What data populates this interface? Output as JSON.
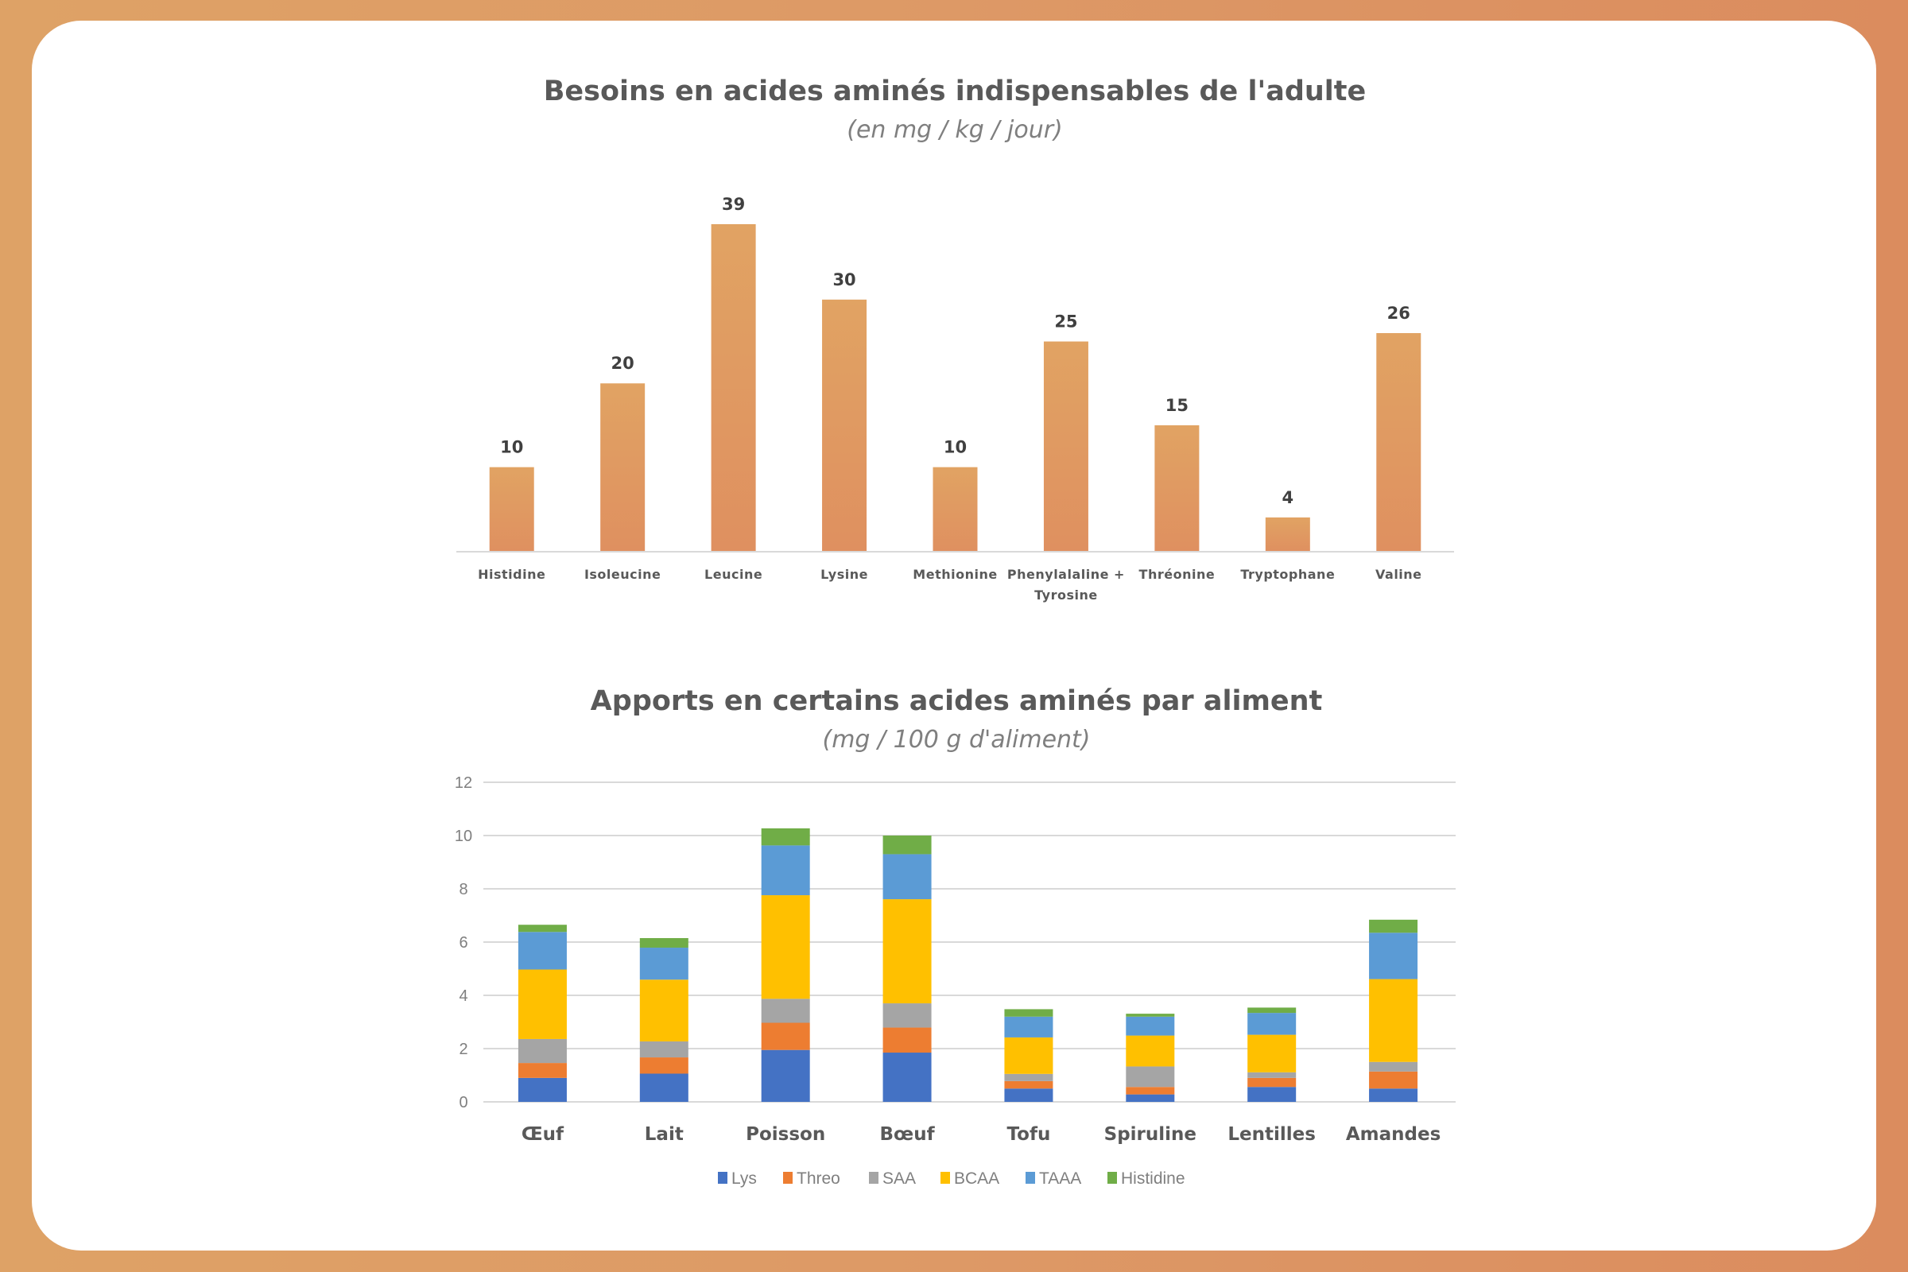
{
  "colors": {
    "bar_top": "#e1a363",
    "bar_bottom": "#df9060",
    "Lys": "#4472c4",
    "Threo": "#ed7d31",
    "SAA": "#a5a5a5",
    "BCAA": "#ffc000",
    "TAAA": "#5b9bd5",
    "Histidine": "#70ad47"
  },
  "chart_data": [
    {
      "type": "bar",
      "title": "Besoins en acides aminés indispensables de l'adulte",
      "subtitle": "(en mg / kg / jour)",
      "xlabel": "",
      "ylabel": "",
      "ylim": [
        0,
        39
      ],
      "grid": false,
      "data_labels": true,
      "categories": [
        [
          "Histidine"
        ],
        [
          "Isoleucine"
        ],
        [
          "Leucine"
        ],
        [
          "Lysine"
        ],
        [
          "Methionine"
        ],
        [
          "Phenylalaline +",
          "Tyrosine"
        ],
        [
          "Thréonine"
        ],
        [
          "Tryptophane"
        ],
        [
          "Valine"
        ]
      ],
      "values": [
        10,
        20,
        39,
        30,
        10,
        25,
        15,
        4,
        26
      ],
      "value_labels": [
        "10",
        "20",
        "39",
        "30",
        "10",
        "25",
        "15",
        "4",
        "26"
      ]
    },
    {
      "type": "bar",
      "stacked": true,
      "title": "Apports en certains acides aminés par aliment",
      "subtitle": "(mg / 100 g d'aliment)",
      "xlabel": "",
      "ylabel": "",
      "ylim": [
        0,
        12
      ],
      "yticks": [
        "0",
        "2",
        "4",
        "6",
        "8",
        "10",
        "12"
      ],
      "grid": true,
      "legend_position": "bottom",
      "categories": [
        "Œuf",
        "Lait",
        "Poisson",
        "Bœuf",
        "Tofu",
        "Spiruline",
        "Lentilles",
        "Amandes"
      ],
      "series": [
        {
          "name": "Lys",
          "values": [
            0.9,
            1.06,
            1.95,
            1.85,
            0.5,
            0.28,
            0.56,
            0.5
          ]
        },
        {
          "name": "Threo",
          "values": [
            0.56,
            0.61,
            1.02,
            0.94,
            0.28,
            0.28,
            0.34,
            0.64
          ]
        },
        {
          "name": "SAA",
          "values": [
            0.9,
            0.6,
            0.9,
            0.91,
            0.27,
            0.77,
            0.21,
            0.36
          ]
        },
        {
          "name": "BCAA",
          "values": [
            2.61,
            2.32,
            3.89,
            3.91,
            1.37,
            1.16,
            1.41,
            3.11
          ]
        },
        {
          "name": "TAAA",
          "values": [
            1.41,
            1.2,
            1.87,
            1.69,
            0.78,
            0.71,
            0.82,
            1.74
          ]
        },
        {
          "name": "Histidine",
          "values": [
            0.27,
            0.36,
            0.64,
            0.7,
            0.28,
            0.11,
            0.2,
            0.49
          ]
        }
      ]
    }
  ]
}
